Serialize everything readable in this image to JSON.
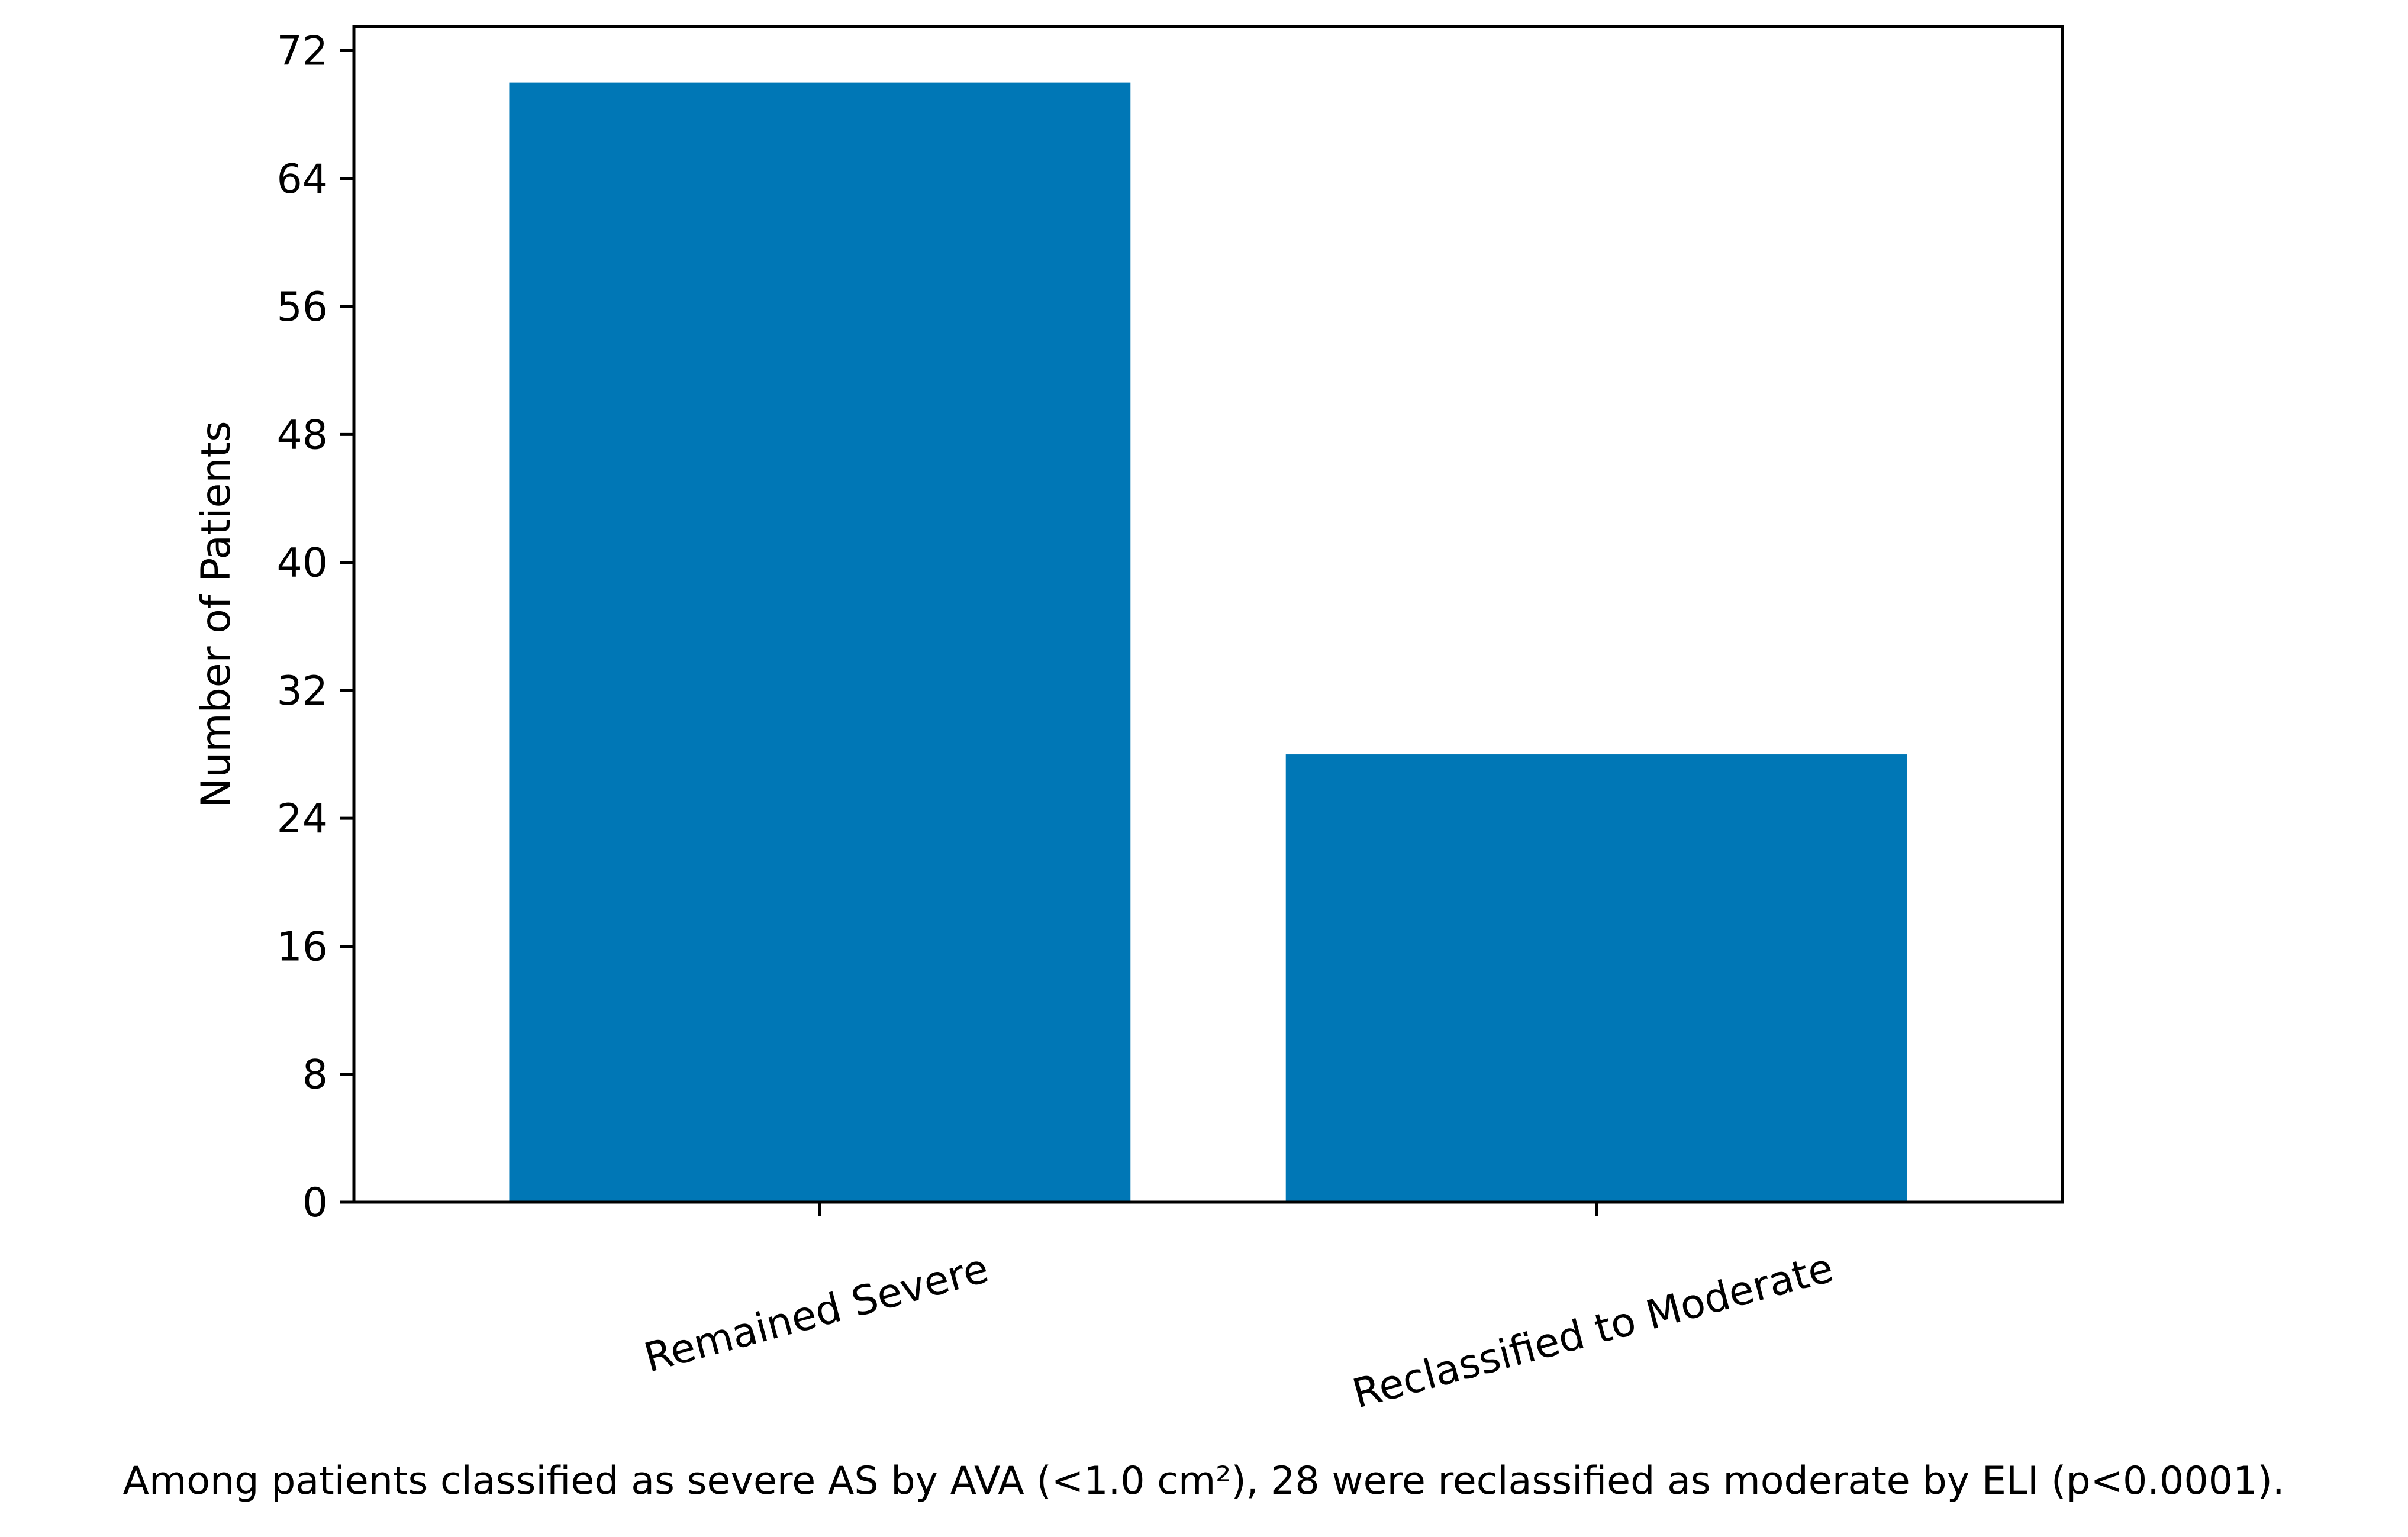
{
  "chart_data": {
    "type": "bar",
    "categories": [
      "Remained Severe",
      "Reclassified to Moderate"
    ],
    "values": [
      70,
      28
    ],
    "title": "",
    "xlabel": "",
    "ylabel": "Number of Patients",
    "ylim": [
      0,
      73.5
    ],
    "yticks": [
      0,
      8,
      16,
      24,
      32,
      40,
      48,
      56,
      64,
      72
    ],
    "bar_color": "#0077b6",
    "grid": false,
    "legend": "none"
  },
  "caption": "Among patients classified as severe AS by AVA (<1.0 cm²), 28 were reclassified as moderate by ELI (p<0.0001)."
}
